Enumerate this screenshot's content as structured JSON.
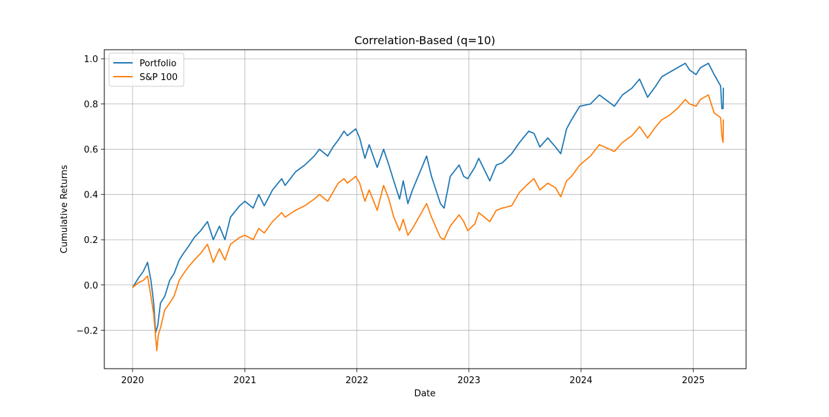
{
  "chart_data": {
    "type": "line",
    "title": "Correlation-Based (q=10)",
    "xlabel": "Date",
    "ylabel": "Cumulative Returns",
    "xlim": [
      "2019-10-01",
      "2025-06-22"
    ],
    "ylim": [
      -0.37,
      1.04
    ],
    "xticks": [
      {
        "date": "2020-01-01",
        "label": "2020"
      },
      {
        "date": "2021-01-01",
        "label": "2021"
      },
      {
        "date": "2022-01-01",
        "label": "2022"
      },
      {
        "date": "2023-01-01",
        "label": "2023"
      },
      {
        "date": "2024-01-01",
        "label": "2024"
      },
      {
        "date": "2025-01-01",
        "label": "2025"
      }
    ],
    "yticks": [
      {
        "value": -0.2,
        "label": "−0.2"
      },
      {
        "value": 0.0,
        "label": "0.0"
      },
      {
        "value": 0.2,
        "label": "0.2"
      },
      {
        "value": 0.4,
        "label": "0.4"
      },
      {
        "value": 0.6,
        "label": "0.6"
      },
      {
        "value": 0.8,
        "label": "0.8"
      },
      {
        "value": 1.0,
        "label": "1.0"
      }
    ],
    "grid": true,
    "legend_position": "upper-left",
    "series": [
      {
        "name": "Portfolio",
        "color": "#1f77b4",
        "points": [
          [
            "2020-01-02",
            -0.01
          ],
          [
            "2020-01-20",
            0.03
          ],
          [
            "2020-02-05",
            0.06
          ],
          [
            "2020-02-19",
            0.1
          ],
          [
            "2020-03-01",
            0.02
          ],
          [
            "2020-03-10",
            -0.08
          ],
          [
            "2020-03-16",
            -0.21
          ],
          [
            "2020-03-23",
            -0.18
          ],
          [
            "2020-04-01",
            -0.08
          ],
          [
            "2020-04-15",
            -0.05
          ],
          [
            "2020-05-01",
            0.02
          ],
          [
            "2020-05-15",
            0.05
          ],
          [
            "2020-06-01",
            0.11
          ],
          [
            "2020-06-15",
            0.14
          ],
          [
            "2020-07-01",
            0.17
          ],
          [
            "2020-07-20",
            0.21
          ],
          [
            "2020-08-10",
            0.24
          ],
          [
            "2020-09-01",
            0.28
          ],
          [
            "2020-09-20",
            0.2
          ],
          [
            "2020-10-10",
            0.26
          ],
          [
            "2020-10-28",
            0.2
          ],
          [
            "2020-11-15",
            0.3
          ],
          [
            "2020-12-15",
            0.35
          ],
          [
            "2021-01-01",
            0.37
          ],
          [
            "2021-01-28",
            0.34
          ],
          [
            "2021-02-15",
            0.4
          ],
          [
            "2021-03-05",
            0.35
          ],
          [
            "2021-04-01",
            0.42
          ],
          [
            "2021-05-01",
            0.47
          ],
          [
            "2021-05-12",
            0.44
          ],
          [
            "2021-06-15",
            0.5
          ],
          [
            "2021-07-15",
            0.53
          ],
          [
            "2021-08-15",
            0.57
          ],
          [
            "2021-09-01",
            0.6
          ],
          [
            "2021-09-28",
            0.57
          ],
          [
            "2021-10-15",
            0.61
          ],
          [
            "2021-11-01",
            0.64
          ],
          [
            "2021-11-20",
            0.68
          ],
          [
            "2021-12-01",
            0.66
          ],
          [
            "2021-12-28",
            0.69
          ],
          [
            "2022-01-10",
            0.65
          ],
          [
            "2022-01-27",
            0.56
          ],
          [
            "2022-02-10",
            0.62
          ],
          [
            "2022-03-08",
            0.52
          ],
          [
            "2022-03-29",
            0.6
          ],
          [
            "2022-04-15",
            0.53
          ],
          [
            "2022-05-01",
            0.46
          ],
          [
            "2022-05-20",
            0.38
          ],
          [
            "2022-06-01",
            0.46
          ],
          [
            "2022-06-16",
            0.36
          ],
          [
            "2022-07-01",
            0.42
          ],
          [
            "2022-08-16",
            0.57
          ],
          [
            "2022-09-01",
            0.48
          ],
          [
            "2022-09-30",
            0.36
          ],
          [
            "2022-10-12",
            0.34
          ],
          [
            "2022-10-25",
            0.43
          ],
          [
            "2022-11-01",
            0.48
          ],
          [
            "2022-11-30",
            0.53
          ],
          [
            "2022-12-15",
            0.48
          ],
          [
            "2022-12-28",
            0.47
          ],
          [
            "2023-01-20",
            0.52
          ],
          [
            "2023-02-02",
            0.56
          ],
          [
            "2023-03-10",
            0.46
          ],
          [
            "2023-03-31",
            0.53
          ],
          [
            "2023-04-20",
            0.54
          ],
          [
            "2023-05-20",
            0.58
          ],
          [
            "2023-06-15",
            0.63
          ],
          [
            "2023-07-15",
            0.68
          ],
          [
            "2023-08-01",
            0.67
          ],
          [
            "2023-08-20",
            0.61
          ],
          [
            "2023-09-15",
            0.65
          ],
          [
            "2023-10-10",
            0.61
          ],
          [
            "2023-10-27",
            0.58
          ],
          [
            "2023-11-15",
            0.69
          ],
          [
            "2023-12-01",
            0.73
          ],
          [
            "2023-12-28",
            0.79
          ],
          [
            "2024-02-01",
            0.8
          ],
          [
            "2024-03-01",
            0.84
          ],
          [
            "2024-04-19",
            0.79
          ],
          [
            "2024-05-15",
            0.84
          ],
          [
            "2024-06-15",
            0.87
          ],
          [
            "2024-07-10",
            0.91
          ],
          [
            "2024-08-05",
            0.83
          ],
          [
            "2024-09-01",
            0.88
          ],
          [
            "2024-09-20",
            0.92
          ],
          [
            "2024-10-15",
            0.94
          ],
          [
            "2024-11-10",
            0.96
          ],
          [
            "2024-12-06",
            0.98
          ],
          [
            "2024-12-20",
            0.95
          ],
          [
            "2025-01-10",
            0.93
          ],
          [
            "2025-01-24",
            0.96
          ],
          [
            "2025-02-19",
            0.98
          ],
          [
            "2025-03-10",
            0.93
          ],
          [
            "2025-03-31",
            0.88
          ],
          [
            "2025-04-04",
            0.78
          ],
          [
            "2025-04-08",
            0.78
          ],
          [
            "2025-04-09",
            0.87
          ]
        ]
      },
      {
        "name": "S&P 100",
        "color": "#ff7f0e",
        "points": [
          [
            "2020-01-02",
            -0.01
          ],
          [
            "2020-01-20",
            0.01
          ],
          [
            "2020-02-05",
            0.02
          ],
          [
            "2020-02-19",
            0.04
          ],
          [
            "2020-03-01",
            -0.05
          ],
          [
            "2020-03-10",
            -0.13
          ],
          [
            "2020-03-20",
            -0.29
          ],
          [
            "2020-03-25",
            -0.22
          ],
          [
            "2020-04-01",
            -0.19
          ],
          [
            "2020-04-15",
            -0.11
          ],
          [
            "2020-05-01",
            -0.08
          ],
          [
            "2020-05-15",
            -0.05
          ],
          [
            "2020-06-01",
            0.02
          ],
          [
            "2020-06-15",
            0.05
          ],
          [
            "2020-07-01",
            0.08
          ],
          [
            "2020-07-20",
            0.11
          ],
          [
            "2020-08-10",
            0.14
          ],
          [
            "2020-09-01",
            0.18
          ],
          [
            "2020-09-20",
            0.1
          ],
          [
            "2020-10-10",
            0.16
          ],
          [
            "2020-10-28",
            0.11
          ],
          [
            "2020-11-15",
            0.18
          ],
          [
            "2020-12-15",
            0.21
          ],
          [
            "2021-01-01",
            0.22
          ],
          [
            "2021-01-28",
            0.2
          ],
          [
            "2021-02-15",
            0.25
          ],
          [
            "2021-03-05",
            0.23
          ],
          [
            "2021-04-01",
            0.28
          ],
          [
            "2021-05-01",
            0.32
          ],
          [
            "2021-05-12",
            0.3
          ],
          [
            "2021-06-15",
            0.33
          ],
          [
            "2021-07-15",
            0.35
          ],
          [
            "2021-08-15",
            0.38
          ],
          [
            "2021-09-01",
            0.4
          ],
          [
            "2021-09-28",
            0.37
          ],
          [
            "2021-10-15",
            0.41
          ],
          [
            "2021-11-01",
            0.45
          ],
          [
            "2021-11-20",
            0.47
          ],
          [
            "2021-12-01",
            0.45
          ],
          [
            "2021-12-28",
            0.48
          ],
          [
            "2022-01-10",
            0.45
          ],
          [
            "2022-01-27",
            0.37
          ],
          [
            "2022-02-10",
            0.42
          ],
          [
            "2022-03-08",
            0.33
          ],
          [
            "2022-03-29",
            0.44
          ],
          [
            "2022-04-15",
            0.38
          ],
          [
            "2022-05-01",
            0.3
          ],
          [
            "2022-05-20",
            0.24
          ],
          [
            "2022-06-01",
            0.29
          ],
          [
            "2022-06-16",
            0.22
          ],
          [
            "2022-07-01",
            0.25
          ],
          [
            "2022-08-16",
            0.36
          ],
          [
            "2022-09-01",
            0.3
          ],
          [
            "2022-09-30",
            0.21
          ],
          [
            "2022-10-12",
            0.2
          ],
          [
            "2022-10-25",
            0.24
          ],
          [
            "2022-11-01",
            0.26
          ],
          [
            "2022-11-30",
            0.31
          ],
          [
            "2022-12-15",
            0.28
          ],
          [
            "2022-12-28",
            0.24
          ],
          [
            "2023-01-20",
            0.27
          ],
          [
            "2023-02-02",
            0.32
          ],
          [
            "2023-03-10",
            0.28
          ],
          [
            "2023-03-31",
            0.33
          ],
          [
            "2023-04-20",
            0.34
          ],
          [
            "2023-05-20",
            0.35
          ],
          [
            "2023-06-15",
            0.41
          ],
          [
            "2023-07-15",
            0.45
          ],
          [
            "2023-08-01",
            0.47
          ],
          [
            "2023-08-20",
            0.42
          ],
          [
            "2023-09-15",
            0.45
          ],
          [
            "2023-10-10",
            0.43
          ],
          [
            "2023-10-27",
            0.39
          ],
          [
            "2023-11-15",
            0.46
          ],
          [
            "2023-12-01",
            0.48
          ],
          [
            "2023-12-28",
            0.53
          ],
          [
            "2024-02-01",
            0.57
          ],
          [
            "2024-03-01",
            0.62
          ],
          [
            "2024-04-19",
            0.59
          ],
          [
            "2024-05-15",
            0.63
          ],
          [
            "2024-06-15",
            0.66
          ],
          [
            "2024-07-10",
            0.7
          ],
          [
            "2024-08-05",
            0.65
          ],
          [
            "2024-09-01",
            0.7
          ],
          [
            "2024-09-20",
            0.73
          ],
          [
            "2024-10-15",
            0.75
          ],
          [
            "2024-11-10",
            0.78
          ],
          [
            "2024-12-06",
            0.82
          ],
          [
            "2024-12-20",
            0.8
          ],
          [
            "2025-01-10",
            0.79
          ],
          [
            "2025-01-24",
            0.82
          ],
          [
            "2025-02-19",
            0.84
          ],
          [
            "2025-03-10",
            0.76
          ],
          [
            "2025-03-31",
            0.74
          ],
          [
            "2025-04-04",
            0.66
          ],
          [
            "2025-04-08",
            0.63
          ],
          [
            "2025-04-09",
            0.73
          ]
        ]
      }
    ]
  }
}
